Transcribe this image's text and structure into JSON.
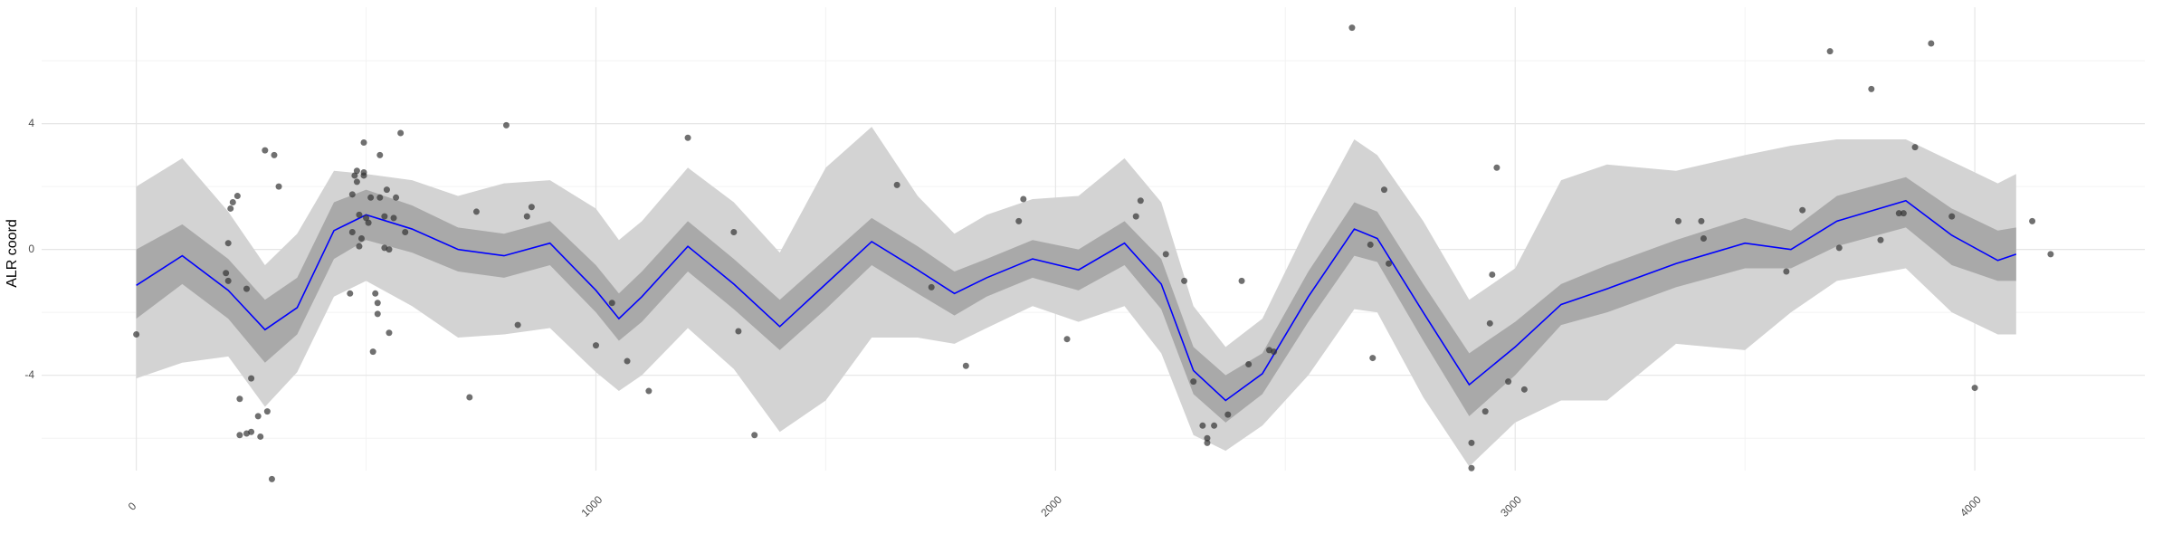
{
  "chart_data": {
    "type": "scatter",
    "y_label": "ALR coord",
    "xlim": [
      -206,
      4370
    ],
    "ylim": [
      -7.03,
      7.7
    ],
    "xticks": [
      0,
      1000,
      2000,
      3000,
      4000
    ],
    "yticks": [
      -4,
      0,
      4
    ],
    "x_minor_ticks": [
      500,
      1500,
      2500,
      3500
    ],
    "y_minor_ticks": [
      -6,
      -2,
      2,
      6
    ],
    "grid": true,
    "points": {
      "color": "#333333",
      "x": [
        0,
        195,
        200,
        200,
        205,
        210,
        220,
        225,
        225,
        240,
        240,
        250,
        250,
        265,
        270,
        280,
        285,
        295,
        300,
        310,
        465,
        470,
        470,
        475,
        480,
        480,
        485,
        485,
        490,
        495,
        495,
        495,
        500,
        505,
        510,
        515,
        520,
        525,
        525,
        530,
        530,
        540,
        540,
        545,
        550,
        550,
        560,
        565,
        575,
        585,
        725,
        740,
        805,
        830,
        850,
        860,
        1000,
        1035,
        1068,
        1115,
        1200,
        1300,
        1310,
        1345,
        1655,
        1730,
        1805,
        1920,
        1930,
        2025,
        2175,
        2185,
        2240,
        2280,
        2300,
        2320,
        2330,
        2330,
        2345,
        2375,
        2405,
        2420,
        2465,
        2475,
        2645,
        2685,
        2690,
        2715,
        2725,
        2905,
        2905,
        2935,
        2945,
        2950,
        2960,
        2985,
        3020,
        3355,
        3405,
        3410,
        3590,
        3625,
        3685,
        3705,
        3775,
        3795,
        3835,
        3845,
        3870,
        3905,
        3950,
        4000,
        4125,
        4165
      ],
      "y": [
        -2.7,
        -0.75,
        -1.0,
        0.2,
        1.3,
        1.5,
        1.7,
        -4.75,
        -5.9,
        -5.85,
        -1.25,
        -4.1,
        -5.8,
        -5.3,
        -5.95,
        3.15,
        -5.15,
        -7.3,
        3.0,
        2.0,
        -1.4,
        0.55,
        1.75,
        2.35,
        2.15,
        2.5,
        1.1,
        0.1,
        0.35,
        2.35,
        3.4,
        2.45,
        1.0,
        0.85,
        1.65,
        -3.25,
        -1.4,
        -1.7,
        -2.05,
        1.65,
        3.0,
        0.05,
        1.05,
        1.9,
        -2.65,
        0,
        1.0,
        1.65,
        3.7,
        0.55,
        -4.7,
        1.2,
        3.95,
        -2.4,
        1.05,
        1.35,
        -3.05,
        -1.7,
        -3.55,
        -4.5,
        3.55,
        0.55,
        -2.6,
        -5.9,
        2.05,
        -1.2,
        -3.7,
        0.9,
        1.6,
        -2.85,
        1.05,
        1.55,
        -0.15,
        -1.0,
        -4.2,
        -5.6,
        -6.0,
        -6.15,
        -5.6,
        -5.25,
        -1.0,
        -3.65,
        -3.2,
        -3.25,
        7.05,
        0.15,
        -3.45,
        1.9,
        -0.45,
        -6.15,
        -6.95,
        -5.15,
        -2.35,
        -0.8,
        2.6,
        -4.2,
        -4.45,
        0.9,
        0.9,
        0.35,
        -0.7,
        1.25,
        6.3,
        0.05,
        5.1,
        0.3,
        1.15,
        1.15,
        3.25,
        6.55,
        1.05,
        -4.4,
        0.9,
        -0.15
      ]
    },
    "smooth": {
      "color": "#0000ff",
      "x": [
        0,
        100,
        200,
        280,
        350,
        430,
        500,
        600,
        700,
        800,
        900,
        1000,
        1050,
        1100,
        1200,
        1300,
        1400,
        1500,
        1600,
        1700,
        1780,
        1850,
        1950,
        2050,
        2150,
        2230,
        2300,
        2370,
        2450,
        2550,
        2650,
        2700,
        2800,
        2900,
        3000,
        3100,
        3200,
        3350,
        3500,
        3600,
        3700,
        3850,
        3950,
        4050,
        4090
      ],
      "y": [
        -1.14,
        -0.2,
        -1.3,
        -2.55,
        -1.85,
        0.6,
        1.1,
        0.65,
        0,
        -0.2,
        0.2,
        -1.3,
        -2.2,
        -1.5,
        0.1,
        -1.1,
        -2.45,
        -1.1,
        0.25,
        -0.65,
        -1.4,
        -0.9,
        -0.3,
        -0.65,
        0.2,
        -1.1,
        -3.85,
        -4.8,
        -3.95,
        -1.5,
        0.65,
        0.35,
        -2.0,
        -4.3,
        -3.1,
        -1.75,
        -1.25,
        -0.45,
        0.2,
        0,
        0.9,
        1.55,
        0.45,
        -0.35,
        -0.15
      ],
      "ci_outer": {
        "color": "#d3d3d3",
        "lower": [
          -4.1,
          -3.6,
          -3.4,
          -5.0,
          -3.9,
          -1.5,
          -1.0,
          -1.8,
          -2.8,
          -2.7,
          -2.5,
          -3.9,
          -4.5,
          -4.0,
          -2.5,
          -3.8,
          -5.8,
          -4.8,
          -2.8,
          -2.8,
          -3.0,
          -2.5,
          -1.8,
          -2.3,
          -1.8,
          -3.3,
          -5.9,
          -6.4,
          -5.6,
          -4.0,
          -1.9,
          -2.0,
          -4.7,
          -6.9,
          -5.5,
          -4.8,
          -4.8,
          -3.0,
          -3.2,
          -2.0,
          -1.0,
          -0.6,
          -2.0,
          -2.7,
          -2.7
        ],
        "upper": [
          2.0,
          2.9,
          1.2,
          -0.5,
          0.5,
          2.5,
          2.4,
          2.2,
          1.7,
          2.1,
          2.2,
          1.3,
          0.3,
          0.9,
          2.6,
          1.5,
          -0.1,
          2.6,
          3.9,
          1.7,
          0.5,
          1.1,
          1.6,
          1.7,
          2.9,
          1.5,
          -1.8,
          -3.1,
          -2.2,
          0.8,
          3.5,
          3.0,
          0.9,
          -1.6,
          -0.6,
          2.2,
          2.7,
          2.5,
          3.0,
          3.3,
          3.5,
          3.5,
          2.8,
          2.1,
          2.4
        ]
      },
      "ci_inner": {
        "color": "#a9a9a9",
        "lower": [
          -2.2,
          -1.1,
          -2.2,
          -3.6,
          -2.7,
          -0.3,
          0.3,
          -0.1,
          -0.7,
          -0.9,
          -0.5,
          -2.0,
          -2.9,
          -2.3,
          -0.7,
          -1.9,
          -3.2,
          -1.9,
          -0.5,
          -1.4,
          -2.1,
          -1.5,
          -0.9,
          -1.3,
          -0.5,
          -1.9,
          -4.6,
          -5.5,
          -4.6,
          -2.3,
          -0.2,
          -0.4,
          -2.9,
          -5.3,
          -4.0,
          -2.4,
          -2.0,
          -1.2,
          -0.6,
          -0.6,
          0.1,
          0.7,
          -0.5,
          -1.0,
          -1.0
        ],
        "upper": [
          0.0,
          0.8,
          -0.3,
          -1.6,
          -0.9,
          1.5,
          1.9,
          1.4,
          0.7,
          0.5,
          0.9,
          -0.5,
          -1.4,
          -0.7,
          0.9,
          -0.3,
          -1.6,
          -0.3,
          1.0,
          0.1,
          -0.7,
          -0.3,
          0.3,
          0.0,
          0.9,
          -0.3,
          -3.1,
          -4.0,
          -3.3,
          -0.7,
          1.5,
          1.2,
          -1.1,
          -3.3,
          -2.3,
          -1.1,
          -0.5,
          0.3,
          1.0,
          0.6,
          1.7,
          2.3,
          1.3,
          0.6,
          0.7
        ]
      }
    }
  }
}
